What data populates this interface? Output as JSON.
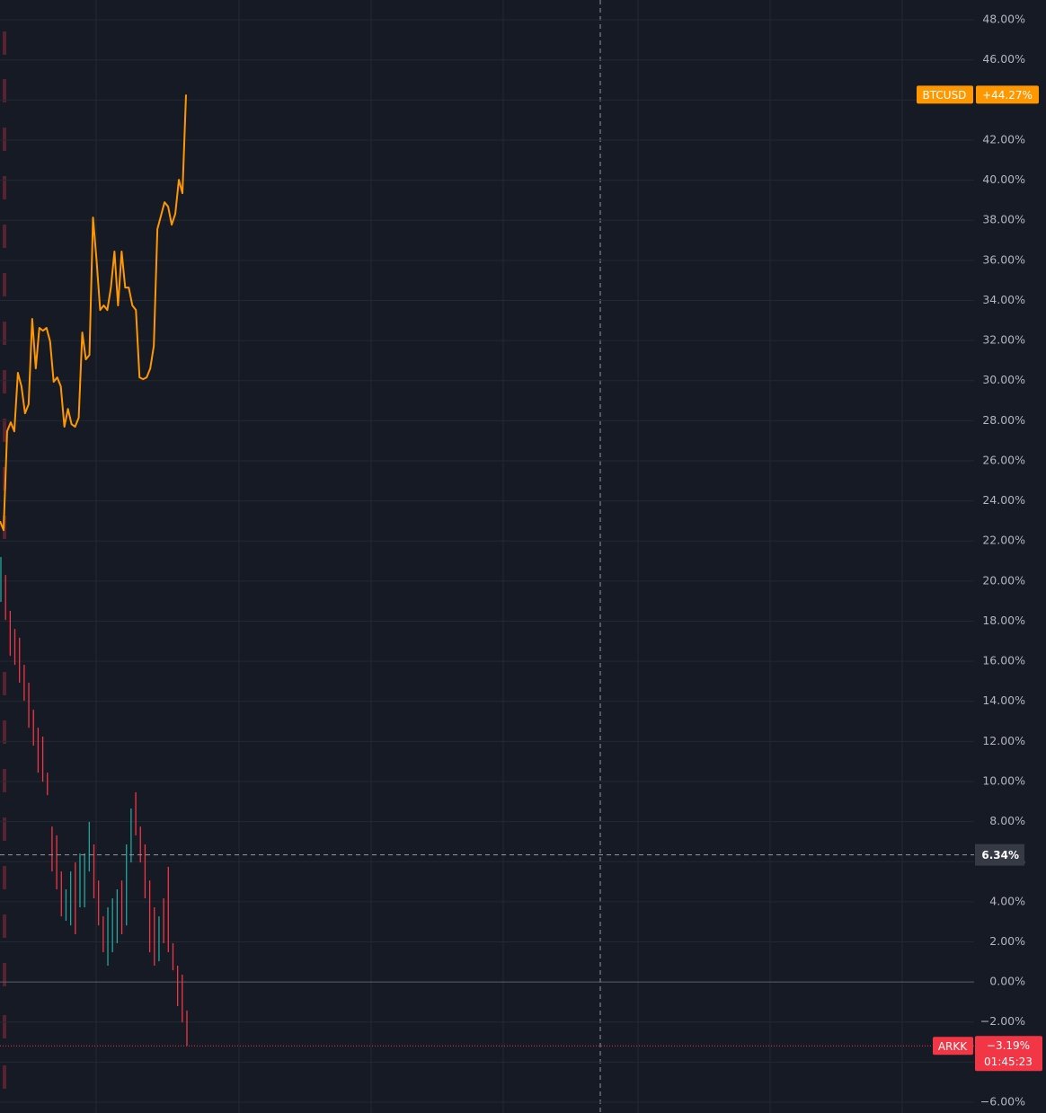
{
  "chart_data": {
    "type": "line",
    "ylim": [
      -6.54,
      48.99
    ],
    "yticks": [
      {
        "value": -6,
        "label": "−6.00%"
      },
      {
        "value": -4,
        "label": "−4.00%"
      },
      {
        "value": -2,
        "label": "−2.00%"
      },
      {
        "value": 0,
        "label": "0.00%"
      },
      {
        "value": 2,
        "label": "2.00%"
      },
      {
        "value": 4,
        "label": "4.00%"
      },
      {
        "value": 6,
        "label": "6.00%"
      },
      {
        "value": 8,
        "label": "8.00%"
      },
      {
        "value": 10,
        "label": "10.00%"
      },
      {
        "value": 12,
        "label": "12.00%"
      },
      {
        "value": 14,
        "label": "14.00%"
      },
      {
        "value": 16,
        "label": "16.00%"
      },
      {
        "value": 18,
        "label": "18.00%"
      },
      {
        "value": 20,
        "label": "20.00%"
      },
      {
        "value": 22,
        "label": "22.00%"
      },
      {
        "value": 24,
        "label": "24.00%"
      },
      {
        "value": 26,
        "label": "26.00%"
      },
      {
        "value": 28,
        "label": "28.00%"
      },
      {
        "value": 30,
        "label": "30.00%"
      },
      {
        "value": 32,
        "label": "32.00%"
      },
      {
        "value": 34,
        "label": "34.00%"
      },
      {
        "value": 36,
        "label": "36.00%"
      },
      {
        "value": 38,
        "label": "38.00%"
      },
      {
        "value": 40,
        "label": "40.00%"
      },
      {
        "value": 42,
        "label": "42.00%"
      },
      {
        "value": 44,
        "label": "44.00%"
      },
      {
        "value": 46,
        "label": "46.00%"
      },
      {
        "value": 48,
        "label": "48.00%"
      }
    ],
    "grid": true,
    "crosshair": {
      "value": 6.34,
      "label": "6.34%"
    },
    "series": [
      {
        "name": "BTCUSD",
        "type": "line",
        "color": "#ff9800",
        "values": [
          22.99,
          22.54,
          27.47,
          27.92,
          27.47,
          30.39,
          29.71,
          28.37,
          28.82,
          33.08,
          30.61,
          32.63,
          32.49,
          32.63,
          31.96,
          29.94,
          30.16,
          29.71,
          27.7,
          28.59,
          27.83,
          27.7,
          28.15,
          32.4,
          31.06,
          31.28,
          38.14,
          35.99,
          33.52,
          33.75,
          33.52,
          34.64,
          36.44,
          33.75,
          36.44,
          34.64,
          34.64,
          33.75,
          33.52,
          30.16,
          30.07,
          30.16,
          30.61,
          31.73,
          37.56,
          38.23,
          38.9,
          38.68,
          37.78,
          38.32,
          40.02,
          39.35,
          44.27
        ],
        "last_value": 44.27,
        "last_label": "+44.27%"
      },
      {
        "name": "ARKK",
        "type": "ohlc",
        "color": "#f23645",
        "high": [
          21.2,
          20.3,
          18.51,
          17.61,
          17.17,
          15.82,
          14.93,
          13.58,
          12.68,
          12.24,
          10.44,
          7.75,
          7.31,
          5.51,
          4.62,
          5.51,
          5.96,
          6.41,
          6.41,
          7.98,
          6.86,
          5.06,
          3.27,
          3.72,
          4.17,
          4.62,
          5.06,
          6.86,
          8.65,
          9.46,
          7.75,
          6.86,
          5.06,
          3.72,
          3.27,
          4.17,
          5.74,
          1.93,
          0.81,
          0.36,
          -1.43
        ],
        "low": [
          18.96,
          18.06,
          16.27,
          15.82,
          14.93,
          14.03,
          12.68,
          11.79,
          10.44,
          9.99,
          9.32,
          5.51,
          4.62,
          3.27,
          3.05,
          2.82,
          2.38,
          3.72,
          3.72,
          5.51,
          4.17,
          2.82,
          1.48,
          0.81,
          1.48,
          1.93,
          2.38,
          2.82,
          5.96,
          7.31,
          5.96,
          4.17,
          1.48,
          0.81,
          1.03,
          1.93,
          1.48,
          0.58,
          -1.21,
          -2.02,
          -3.19
        ],
        "bar_colors": [
          "#26a69a",
          "#f23645",
          "#f23645",
          "#f23645",
          "#f23645",
          "#f23645",
          "#f23645",
          "#f23645",
          "#f23645",
          "#f23645",
          "#f23645",
          "#f23645",
          "#f23645",
          "#f23645",
          "#26a69a",
          "#26a69a",
          "#f23645",
          "#26a69a",
          "#26a69a",
          "#26a69a",
          "#f23645",
          "#f23645",
          "#f23645",
          "#26a69a",
          "#26a69a",
          "#26a69a",
          "#f23645",
          "#26a69a",
          "#26a69a",
          "#f23645",
          "#f23645",
          "#f23645",
          "#f23645",
          "#f23645",
          "#26a69a",
          "#f23645",
          "#f23645",
          "#f23645",
          "#f23645",
          "#f23645",
          "#f23645"
        ],
        "last_value": -3.19,
        "last_label": "−3.19%",
        "countdown": "01:45:23"
      }
    ]
  }
}
